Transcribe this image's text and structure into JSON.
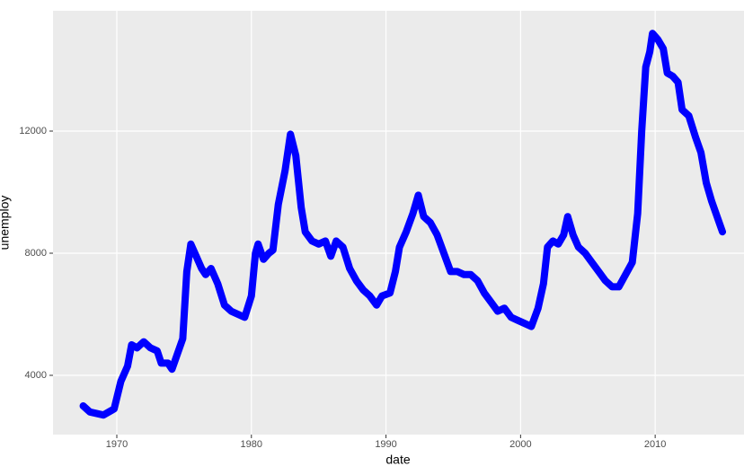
{
  "chart_data": {
    "type": "line",
    "x_label": "date",
    "y_label": "unemploy",
    "x": [
      1967.5,
      1968,
      1969,
      1969.8,
      1970.3,
      1970.8,
      1971.1,
      1971.5,
      1972,
      1972.5,
      1973,
      1973.3,
      1973.8,
      1974.1,
      1974.5,
      1974.9,
      1975.2,
      1975.5,
      1975.9,
      1976.3,
      1976.6,
      1977,
      1977.5,
      1978,
      1978.5,
      1979,
      1979.5,
      1980,
      1980.3,
      1980.5,
      1980.9,
      1981.3,
      1981.6,
      1982,
      1982.5,
      1982.9,
      1983.3,
      1983.7,
      1984,
      1984.5,
      1985,
      1985.5,
      1985.9,
      1986.3,
      1986.8,
      1987.3,
      1987.8,
      1988.3,
      1988.8,
      1989.3,
      1989.7,
      1990.3,
      1990.7,
      1991,
      1991.5,
      1992,
      1992.4,
      1992.8,
      1993.3,
      1993.8,
      1994.3,
      1994.8,
      1995.3,
      1995.8,
      1996.3,
      1996.8,
      1997.3,
      1997.8,
      1998.3,
      1998.8,
      1999.3,
      1999.8,
      2000.3,
      2000.8,
      2001.3,
      2001.7,
      2002,
      2002.4,
      2002.8,
      2003.2,
      2003.5,
      2003.9,
      2004.3,
      2004.8,
      2005.3,
      2005.8,
      2006.3,
      2006.8,
      2007.3,
      2007.8,
      2008.3,
      2008.7,
      2009,
      2009.3,
      2009.6,
      2009.8,
      2010.2,
      2010.6,
      2010.9,
      2011.3,
      2011.7,
      2012,
      2012.5,
      2013,
      2013.4,
      2013.8,
      2014.2,
      2014.6,
      2015
    ],
    "values": [
      3000,
      2800,
      2700,
      2900,
      3800,
      4300,
      5000,
      4900,
      5100,
      4900,
      4800,
      4400,
      4400,
      4200,
      4700,
      5200,
      7400,
      8300,
      7900,
      7500,
      7300,
      7500,
      7000,
      6300,
      6100,
      6000,
      5900,
      6600,
      8000,
      8300,
      7800,
      8000,
      8100,
      9600,
      10700,
      11900,
      11200,
      9500,
      8700,
      8400,
      8300,
      8400,
      7900,
      8400,
      8200,
      7500,
      7100,
      6800,
      6600,
      6300,
      6600,
      6700,
      7400,
      8200,
      8700,
      9300,
      9900,
      9200,
      9000,
      8600,
      8000,
      7400,
      7400,
      7300,
      7300,
      7100,
      6700,
      6400,
      6100,
      6200,
      5900,
      5800,
      5700,
      5600,
      6200,
      7000,
      8200,
      8400,
      8300,
      8600,
      9200,
      8600,
      8200,
      8000,
      7700,
      7400,
      7100,
      6900,
      6900,
      7300,
      7700,
      9300,
      12000,
      14100,
      14600,
      15200,
      15000,
      14700,
      13900,
      13800,
      13600,
      12700,
      12500,
      11800,
      11300,
      10300,
      9700,
      9200,
      8700
    ],
    "color": "#0000ff",
    "xlim": [
      1965.26,
      2016.6
    ],
    "xticks": [
      1970,
      1980,
      1990,
      2000,
      2010
    ],
    "ylim": [
      2059,
      15941
    ],
    "yticks": [
      4000,
      8000,
      12000
    ],
    "grid": true
  }
}
